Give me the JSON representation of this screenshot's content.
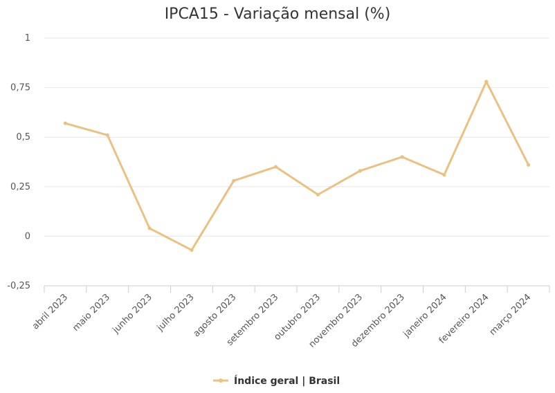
{
  "chart_data": {
    "type": "line",
    "title": "IPCA15 - Variação mensal (%)",
    "categories": [
      "abril 2023",
      "maio 2023",
      "junho 2023",
      "julho 2023",
      "agosto 2023",
      "setembro 2023",
      "outubro 2023",
      "novembro 2023",
      "dezembro 2023",
      "janeiro 2024",
      "fevereiro 2024",
      "março 2024"
    ],
    "series": [
      {
        "name": "Índice geral | Brasil",
        "color": "#ECC07F",
        "values": [
          0.57,
          0.51,
          0.04,
          -0.07,
          0.28,
          0.35,
          0.21,
          0.33,
          0.4,
          0.31,
          0.78,
          0.36
        ]
      }
    ],
    "yticks": [
      -0.25,
      0,
      0.25,
      0.5,
      0.75,
      1
    ],
    "ytick_labels": [
      "-0,25",
      "0",
      "0,25",
      "0,5",
      "0,75",
      "1"
    ],
    "ylim": [
      -0.25,
      1
    ],
    "grid": true,
    "legend": "bottom-center"
  }
}
